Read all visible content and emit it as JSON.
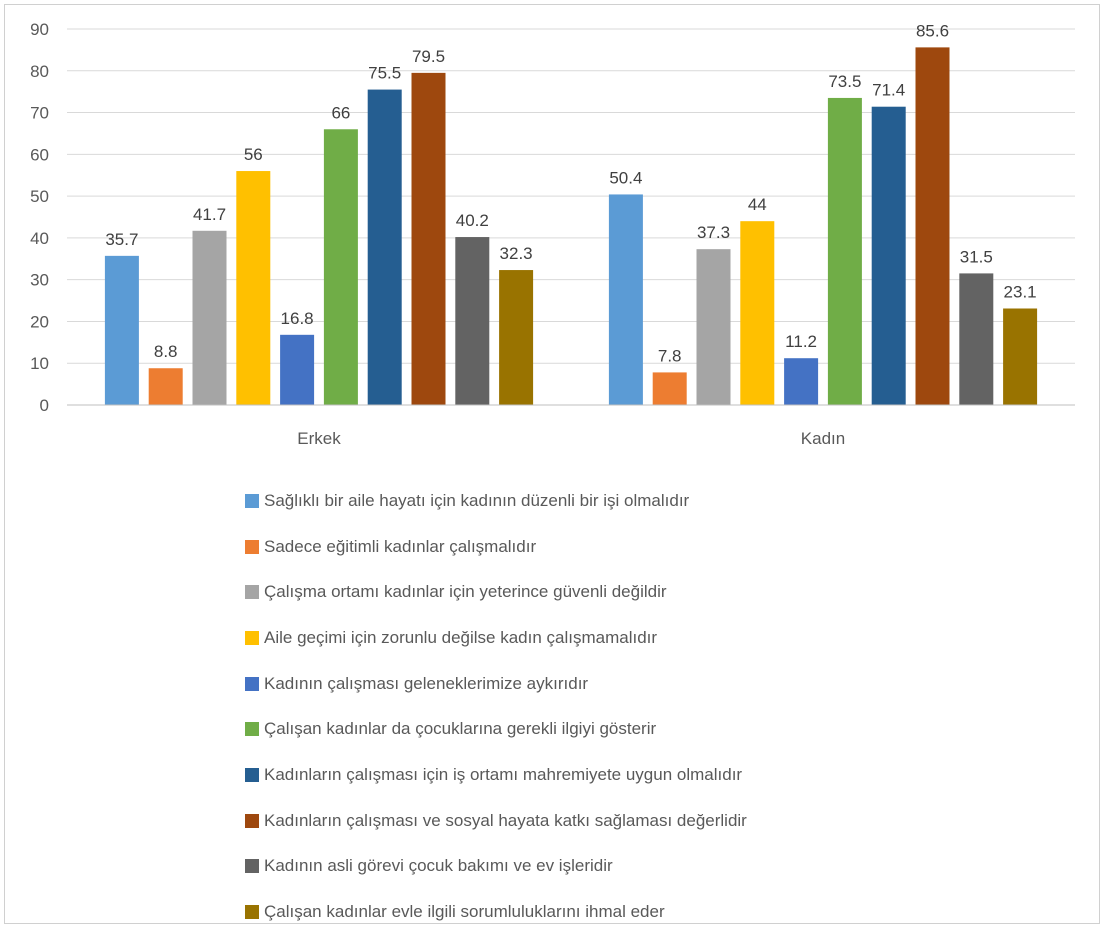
{
  "chart_data": {
    "type": "bar",
    "title": "",
    "xlabel": "",
    "ylabel": "",
    "ylim": [
      0,
      90
    ],
    "yticks": [
      "0",
      "10",
      "20",
      "30",
      "40",
      "50",
      "60",
      "70",
      "80",
      "90"
    ],
    "grid": true,
    "legend_position": "bottom",
    "categories": [
      "Erkek",
      "Kadın"
    ],
    "series": [
      {
        "name": "Sağlıklı bir aile hayatı için kadının düzenli bir işi olmalıdır",
        "color": "#5B9BD5",
        "values": [
          35.7,
          50.4
        ]
      },
      {
        "name": "Sadece eğitimli kadınlar çalışmalıdır",
        "color": "#ED7D31",
        "values": [
          8.8,
          7.8
        ]
      },
      {
        "name": "Çalışma ortamı kadınlar için yeterince güvenli değildir",
        "color": "#A5A5A5",
        "values": [
          41.7,
          37.3
        ]
      },
      {
        "name": "Aile geçimi için zorunlu değilse kadın çalışmamalıdır",
        "color": "#FFC000",
        "values": [
          56,
          44
        ]
      },
      {
        "name": "Kadının çalışması geleneklerimize aykırıdır",
        "color": "#4472C4",
        "values": [
          16.8,
          11.2
        ]
      },
      {
        "name": "Çalışan kadınlar da çocuklarına gerekli ilgiyi gösterir",
        "color": "#70AD47",
        "values": [
          66,
          73.5
        ]
      },
      {
        "name": "Kadınların çalışması için iş ortamı mahremiyete uygun olmalıdır",
        "color": "#255E91",
        "values": [
          75.5,
          71.4
        ]
      },
      {
        "name": "Kadınların çalışması ve sosyal hayata katkı sağlaması değerlidir",
        "color": "#9E480E",
        "values": [
          79.5,
          85.6
        ]
      },
      {
        "name": "Kadının asli görevi çocuk bakımı ve ev işleridir",
        "color": "#636363",
        "values": [
          40.2,
          31.5
        ]
      },
      {
        "name": "Çalışan kadınlar evle ilgili sorumluluklarını ihmal eder",
        "color": "#997300",
        "values": [
          32.3,
          23.1
        ]
      }
    ]
  }
}
